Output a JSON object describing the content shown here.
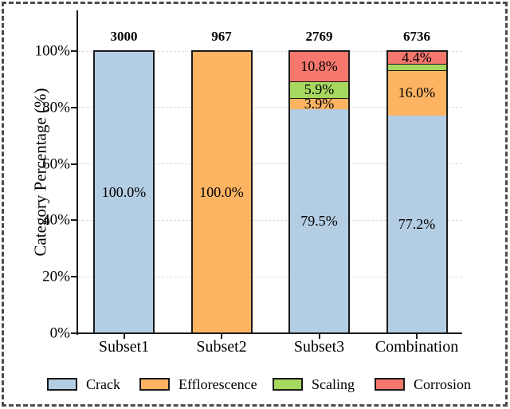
{
  "chart_data": {
    "type": "stacked_bar",
    "title": "",
    "ylabel": "Category Percentage (%)",
    "categories": [
      "Subset1",
      "Subset2",
      "Subset3",
      "Combination"
    ],
    "bar_totals": [
      "3000",
      "967",
      "2769",
      "6736"
    ],
    "ylim": [
      0,
      100
    ],
    "yticks": [
      {
        "value": 0,
        "label": "0%"
      },
      {
        "value": 20,
        "label": "20%"
      },
      {
        "value": 40,
        "label": "40%"
      },
      {
        "value": 60,
        "label": "60%"
      },
      {
        "value": 80,
        "label": "80%"
      },
      {
        "value": 100,
        "label": "100%"
      }
    ],
    "grid": "horizontal dashed",
    "legend_position": "bottom",
    "series": [
      {
        "name": "Crack",
        "color": "#B3CDE3",
        "values": [
          100.0,
          0,
          79.5,
          77.2
        ],
        "value_labels": [
          "100.0%",
          "",
          "79.5%",
          "77.2%"
        ]
      },
      {
        "name": "Efflorescence",
        "color": "#FDB462",
        "values": [
          0,
          100.0,
          3.9,
          16.0
        ],
        "value_labels": [
          "",
          "100.0%",
          "3.9%",
          "16.0%"
        ]
      },
      {
        "name": "Scaling",
        "color": "#A6D75E",
        "values": [
          0,
          0,
          5.9,
          2.4
        ],
        "value_labels": [
          "",
          "",
          "5.9%",
          ""
        ]
      },
      {
        "name": "Corrosion",
        "color": "#F5776E",
        "values": [
          0,
          0,
          10.8,
          4.4
        ],
        "value_labels": [
          "",
          "",
          "10.8%",
          "4.4%"
        ]
      }
    ]
  },
  "colors": {
    "axis": "#1a1a1a",
    "grid": "#d9d9d9",
    "outer_border": "#4c4c4c",
    "text": "#000000",
    "background": "#ffffff"
  }
}
